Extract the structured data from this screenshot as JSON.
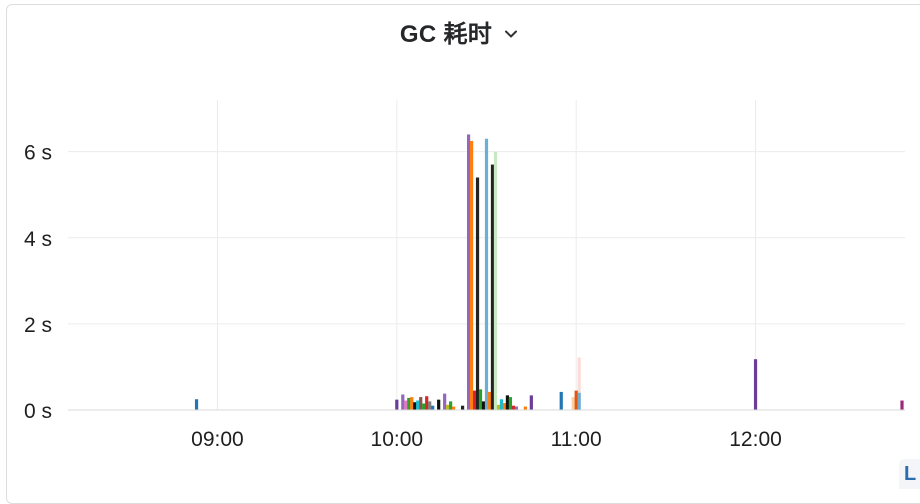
{
  "panel": {
    "title": "GC 耗时",
    "menu_icon": "chevron-down-icon",
    "corner_text": "L"
  },
  "chart_data": {
    "type": "bar",
    "title": "GC 耗时",
    "xlabel": "",
    "ylabel": "",
    "x_ticks": [
      "09:00",
      "10:00",
      "11:00",
      "12:00"
    ],
    "y_ticks": [
      "0 s",
      "2 s",
      "4 s",
      "6 s"
    ],
    "y_unit": "s",
    "ylim": [
      0,
      7.2
    ],
    "xlim": [
      "08:10",
      "12:50"
    ],
    "grid": true,
    "legend": "none",
    "bars": [
      {
        "x": "08:53",
        "value": 0.25,
        "color": "#1f77b4"
      },
      {
        "x": "10:00",
        "value": 0.24,
        "color": "#6a3d9a"
      },
      {
        "x": "10:02",
        "value": 0.36,
        "color": "#9467bd"
      },
      {
        "x": "10:03",
        "value": 0.22,
        "color": "#e377c2"
      },
      {
        "x": "10:04",
        "value": 0.28,
        "color": "#2ca02c"
      },
      {
        "x": "10:05",
        "value": 0.3,
        "color": "#ff7f0e"
      },
      {
        "x": "10:06",
        "value": 0.18,
        "color": "#111111"
      },
      {
        "x": "10:07",
        "value": 0.22,
        "color": "#17becf"
      },
      {
        "x": "10:08",
        "value": 0.3,
        "color": "#8c564b"
      },
      {
        "x": "10:09",
        "value": 0.15,
        "color": "#2ca02c"
      },
      {
        "x": "10:10",
        "value": 0.32,
        "color": "#d62728"
      },
      {
        "x": "10:11",
        "value": 0.2,
        "color": "#7f7f7f"
      },
      {
        "x": "10:12",
        "value": 0.1,
        "color": "#1f77b4"
      },
      {
        "x": "10:14",
        "value": 0.24,
        "color": "#111111"
      },
      {
        "x": "10:16",
        "value": 0.38,
        "color": "#9467bd"
      },
      {
        "x": "10:17",
        "value": 0.12,
        "color": "#bcbd22"
      },
      {
        "x": "10:18",
        "value": 0.2,
        "color": "#2ca02c"
      },
      {
        "x": "10:19",
        "value": 0.08,
        "color": "#ff7f0e"
      },
      {
        "x": "10:22",
        "value": 0.1,
        "color": "#222222"
      },
      {
        "x": "10:24",
        "value": 6.4,
        "color": "#9467bd"
      },
      {
        "x": "10:25",
        "value": 6.25,
        "color": "#ff7f0e"
      },
      {
        "x": "10:26",
        "value": 0.45,
        "color": "#d62728"
      },
      {
        "x": "10:27",
        "value": 5.4,
        "color": "#222222"
      },
      {
        "x": "10:28",
        "value": 0.48,
        "color": "#2ca02c"
      },
      {
        "x": "10:29",
        "value": 0.2,
        "color": "#111111"
      },
      {
        "x": "10:30",
        "value": 6.3,
        "color": "#6baed6"
      },
      {
        "x": "10:31",
        "value": 0.42,
        "color": "#ff7f0e"
      },
      {
        "x": "10:32",
        "value": 5.7,
        "color": "#222222"
      },
      {
        "x": "10:33",
        "value": 6.0,
        "color": "#c7e9c0"
      },
      {
        "x": "10:34",
        "value": 0.12,
        "color": "#bcbd22"
      },
      {
        "x": "10:35",
        "value": 0.25,
        "color": "#17becf"
      },
      {
        "x": "10:36",
        "value": 0.16,
        "color": "#ff7f0e"
      },
      {
        "x": "10:37",
        "value": 0.34,
        "color": "#111111"
      },
      {
        "x": "10:38",
        "value": 0.3,
        "color": "#2ca02c"
      },
      {
        "x": "10:39",
        "value": 0.1,
        "color": "#d62728"
      },
      {
        "x": "10:40",
        "value": 0.08,
        "color": "#9467bd"
      },
      {
        "x": "10:43",
        "value": 0.08,
        "color": "#ff7f0e"
      },
      {
        "x": "10:45",
        "value": 0.34,
        "color": "#6a3d9a"
      },
      {
        "x": "10:55",
        "value": 0.42,
        "color": "#1f77b4"
      },
      {
        "x": "11:01",
        "value": 1.22,
        "color": "#fcdcd6"
      },
      {
        "x": "10:59",
        "value": 0.3,
        "color": "#fdd0a2"
      },
      {
        "x": "11:00",
        "value": 0.45,
        "color": "#e6550d"
      },
      {
        "x": "11:01",
        "value": 0.4,
        "color": "#6baed6"
      },
      {
        "x": "12:00",
        "value": 1.18,
        "color": "#6a3d9a"
      },
      {
        "x": "12:49",
        "value": 0.22,
        "color": "#9c2a7a"
      }
    ]
  }
}
